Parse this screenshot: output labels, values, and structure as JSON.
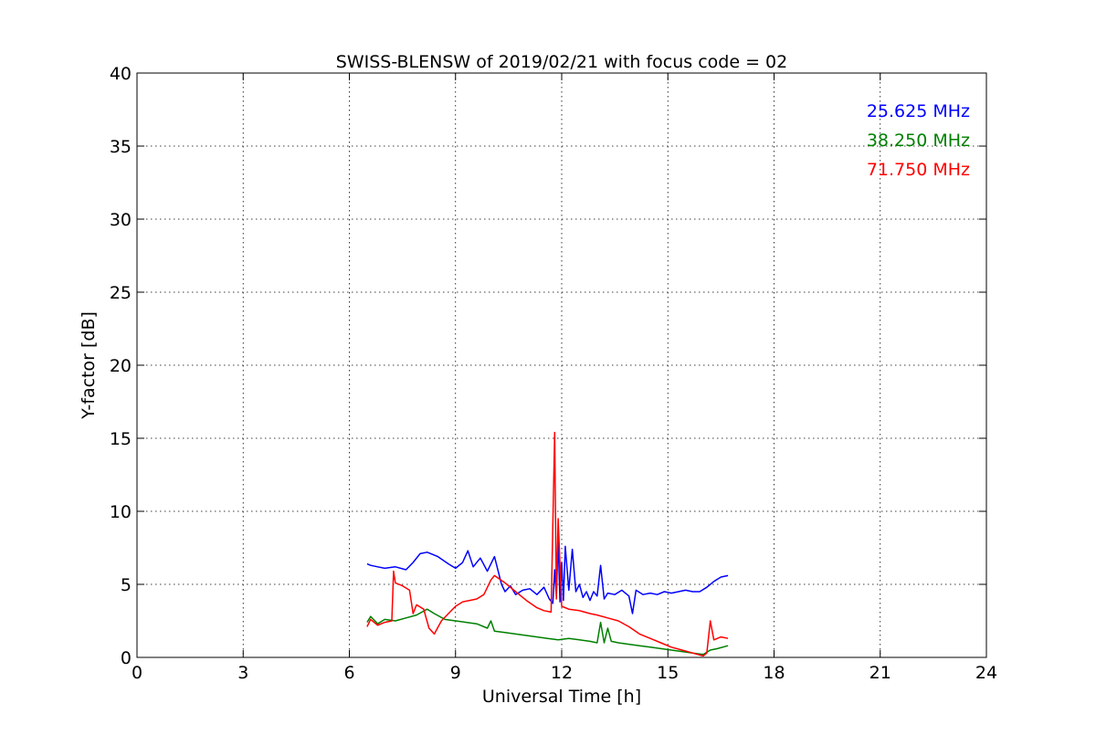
{
  "chart_data": {
    "type": "line",
    "title": "SWISS-BLENSW of 2019/02/21 with focus code = 02",
    "xlabel": "Universal Time [h]",
    "ylabel": "Y-factor [dB]",
    "xlim": [
      0,
      24
    ],
    "ylim": [
      0,
      40
    ],
    "xticks": [
      0,
      3,
      6,
      9,
      12,
      15,
      18,
      21,
      24
    ],
    "yticks": [
      0,
      5,
      10,
      15,
      20,
      25,
      30,
      35,
      40
    ],
    "grid": true,
    "legend_position": "top-right",
    "series": [
      {
        "name": "25.625 MHz",
        "color": "#0000ff",
        "x": [
          6.5,
          6.6,
          6.8,
          7.0,
          7.3,
          7.6,
          7.8,
          8.0,
          8.2,
          8.5,
          8.8,
          9.0,
          9.2,
          9.35,
          9.5,
          9.7,
          9.9,
          10.1,
          10.3,
          10.4,
          10.55,
          10.7,
          10.9,
          11.1,
          11.3,
          11.5,
          11.65,
          11.75,
          11.8,
          11.85,
          11.9,
          11.95,
          12.0,
          12.05,
          12.1,
          12.2,
          12.3,
          12.4,
          12.5,
          12.6,
          12.7,
          12.8,
          12.9,
          13.0,
          13.1,
          13.2,
          13.3,
          13.5,
          13.7,
          13.9,
          14.0,
          14.1,
          14.3,
          14.5,
          14.7,
          14.9,
          15.1,
          15.3,
          15.5,
          15.7,
          15.9,
          16.1,
          16.3,
          16.5,
          16.7
        ],
        "y": [
          6.4,
          6.3,
          6.2,
          6.1,
          6.2,
          6.0,
          6.5,
          7.1,
          7.2,
          6.9,
          6.4,
          6.1,
          6.5,
          7.3,
          6.2,
          6.8,
          5.9,
          6.9,
          5.0,
          4.5,
          4.9,
          4.3,
          4.6,
          4.7,
          4.3,
          4.8,
          4.0,
          3.7,
          6.0,
          4.2,
          8.1,
          3.8,
          6.5,
          3.9,
          7.6,
          4.6,
          7.4,
          4.5,
          5.0,
          4.1,
          4.5,
          3.9,
          4.5,
          4.2,
          6.3,
          4.0,
          4.4,
          4.3,
          4.6,
          4.2,
          3.0,
          4.6,
          4.3,
          4.4,
          4.3,
          4.5,
          4.4,
          4.5,
          4.6,
          4.5,
          4.5,
          4.8,
          5.2,
          5.5,
          5.6
        ]
      },
      {
        "name": "38.250 MHz",
        "color": "#008000",
        "x": [
          6.5,
          6.6,
          6.8,
          7.0,
          7.3,
          7.6,
          7.9,
          8.2,
          8.4,
          8.7,
          9.0,
          9.3,
          9.6,
          9.9,
          10.0,
          10.1,
          10.4,
          10.7,
          11.0,
          11.3,
          11.6,
          11.9,
          12.2,
          12.5,
          12.8,
          13.0,
          13.1,
          13.2,
          13.3,
          13.4,
          13.6,
          13.9,
          14.2,
          14.5,
          14.8,
          15.1,
          15.4,
          15.7,
          16.0,
          16.2,
          16.4,
          16.7
        ],
        "y": [
          2.4,
          2.8,
          2.3,
          2.6,
          2.5,
          2.7,
          2.9,
          3.3,
          3.0,
          2.6,
          2.5,
          2.4,
          2.3,
          2.0,
          2.5,
          1.8,
          1.7,
          1.6,
          1.5,
          1.4,
          1.3,
          1.2,
          1.3,
          1.2,
          1.1,
          1.0,
          2.4,
          1.0,
          2.0,
          1.1,
          1.0,
          0.9,
          0.8,
          0.7,
          0.6,
          0.5,
          0.4,
          0.3,
          0.2,
          0.5,
          0.6,
          0.8
        ]
      },
      {
        "name": "71.750 MHz",
        "color": "#ff0000",
        "x": [
          6.5,
          6.6,
          6.8,
          7.0,
          7.2,
          7.25,
          7.3,
          7.5,
          7.7,
          7.8,
          7.9,
          8.1,
          8.25,
          8.4,
          8.6,
          8.8,
          9.0,
          9.2,
          9.4,
          9.6,
          9.8,
          10.0,
          10.1,
          10.4,
          10.7,
          11.0,
          11.3,
          11.5,
          11.7,
          11.8,
          11.85,
          11.9,
          12.0,
          12.2,
          12.5,
          12.8,
          13.0,
          13.3,
          13.6,
          13.9,
          14.2,
          14.5,
          14.8,
          15.1,
          15.4,
          15.7,
          16.0,
          16.1,
          16.2,
          16.3,
          16.5,
          16.7
        ],
        "y": [
          2.1,
          2.6,
          2.2,
          2.4,
          2.5,
          5.9,
          5.1,
          4.9,
          4.6,
          3.0,
          3.6,
          3.3,
          2.0,
          1.6,
          2.5,
          3.0,
          3.5,
          3.8,
          3.9,
          4.0,
          4.3,
          5.3,
          5.6,
          5.1,
          4.5,
          3.9,
          3.4,
          3.2,
          3.1,
          15.4,
          4.0,
          9.5,
          3.5,
          3.3,
          3.2,
          3.0,
          2.9,
          2.7,
          2.5,
          2.1,
          1.6,
          1.3,
          1.0,
          0.7,
          0.5,
          0.3,
          0.1,
          0.3,
          2.5,
          1.2,
          1.4,
          1.3
        ]
      }
    ]
  }
}
